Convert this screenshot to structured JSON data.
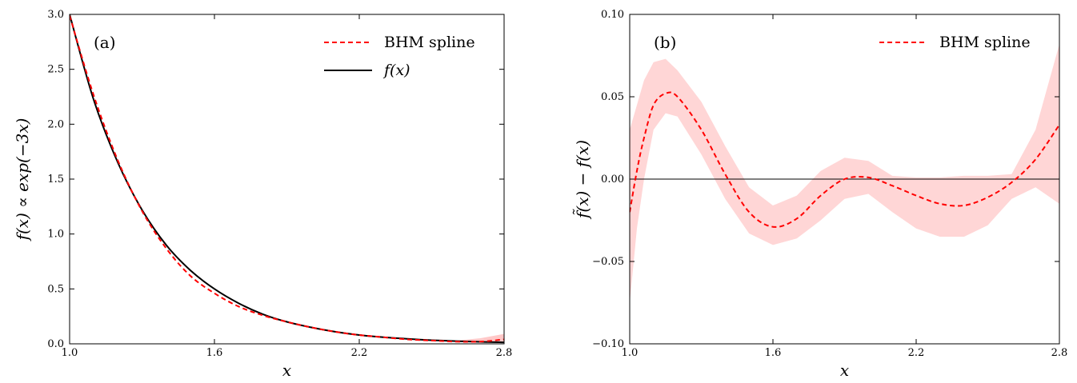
{
  "chart_data": [
    {
      "type": "line",
      "panel_label": "(a)",
      "xlabel": "x",
      "ylabel": "f(x)  ∝  exp(−3x)",
      "xlim": [
        1.0,
        2.8
      ],
      "ylim": [
        0.0,
        3.0
      ],
      "xticks": [
        "1.0",
        "1.6",
        "2.2",
        "2.8"
      ],
      "yticks": [
        "0.0",
        "0.5",
        "1.0",
        "1.5",
        "2.0",
        "2.5",
        "3.0"
      ],
      "grid": false,
      "legend_position": "top-right",
      "series": [
        {
          "name": "BHM spline",
          "style": "dashed",
          "color": "#ff0000",
          "x": [
            1.0,
            1.1,
            1.2,
            1.3,
            1.4,
            1.5,
            1.6,
            1.7,
            1.8,
            1.9,
            2.0,
            2.1,
            2.2,
            2.3,
            2.4,
            2.5,
            2.6,
            2.7,
            2.8
          ],
          "y": [
            2.99,
            2.26,
            1.67,
            1.21,
            0.87,
            0.62,
            0.46,
            0.34,
            0.26,
            0.2,
            0.15,
            0.11,
            0.08,
            0.06,
            0.04,
            0.03,
            0.02,
            0.02,
            0.04
          ],
          "band": {
            "color": "#ffc8c8",
            "x": [
              2.5,
              2.6,
              2.7,
              2.8
            ],
            "lower": [
              0.03,
              0.02,
              0.01,
              0.01
            ],
            "upper": [
              0.03,
              0.03,
              0.05,
              0.09
            ]
          }
        },
        {
          "name": "f(x)",
          "style": "solid",
          "color": "#000000",
          "x": [
            1.0,
            1.1,
            1.2,
            1.3,
            1.4,
            1.5,
            1.6,
            1.7,
            1.8,
            1.9,
            2.0,
            2.1,
            2.2,
            2.3,
            2.4,
            2.5,
            2.6,
            2.7,
            2.8
          ],
          "y": [
            3.0,
            2.22,
            1.65,
            1.22,
            0.9,
            0.67,
            0.5,
            0.37,
            0.27,
            0.2,
            0.15,
            0.11,
            0.08,
            0.06,
            0.045,
            0.033,
            0.025,
            0.018,
            0.014
          ]
        }
      ]
    },
    {
      "type": "line",
      "panel_label": "(b)",
      "xlabel": "x",
      "ylabel": "f̃(x) − f(x)",
      "xlim": [
        1.0,
        2.8
      ],
      "ylim": [
        -0.1,
        0.1
      ],
      "xticks": [
        "1.0",
        "1.6",
        "2.2",
        "2.8"
      ],
      "yticks": [
        "−0.10",
        "−0.05",
        "0.00",
        "0.05",
        "0.10"
      ],
      "grid": false,
      "legend_position": "top-right",
      "reference_line_y": 0.0,
      "series": [
        {
          "name": "BHM spline",
          "style": "dashed",
          "color": "#ff0000",
          "x": [
            1.0,
            1.03,
            1.06,
            1.1,
            1.15,
            1.2,
            1.3,
            1.4,
            1.5,
            1.6,
            1.7,
            1.8,
            1.9,
            2.0,
            2.1,
            2.2,
            2.3,
            2.4,
            2.5,
            2.6,
            2.7,
            2.8
          ],
          "y": [
            -0.02,
            0.005,
            0.025,
            0.045,
            0.052,
            0.05,
            0.03,
            0.003,
            -0.02,
            -0.029,
            -0.024,
            -0.01,
            0.0,
            0.001,
            -0.004,
            -0.01,
            -0.015,
            -0.016,
            -0.011,
            -0.002,
            0.012,
            0.033
          ],
          "band": {
            "color": "#ffd6d6",
            "x": [
              1.0,
              1.03,
              1.06,
              1.1,
              1.15,
              1.2,
              1.3,
              1.4,
              1.5,
              1.6,
              1.7,
              1.8,
              1.9,
              2.0,
              2.1,
              2.2,
              2.3,
              2.4,
              2.5,
              2.6,
              2.7,
              2.8
            ],
            "lower": [
              -0.075,
              -0.03,
              0.0,
              0.03,
              0.04,
              0.038,
              0.015,
              -0.012,
              -0.033,
              -0.04,
              -0.036,
              -0.025,
              -0.012,
              -0.009,
              -0.02,
              -0.03,
              -0.035,
              -0.035,
              -0.028,
              -0.012,
              -0.005,
              -0.015
            ],
            "upper": [
              0.03,
              0.045,
              0.06,
              0.071,
              0.073,
              0.066,
              0.047,
              0.02,
              -0.005,
              -0.016,
              -0.01,
              0.005,
              0.013,
              0.011,
              0.002,
              0.001,
              0.001,
              0.002,
              0.002,
              0.003,
              0.03,
              0.082
            ]
          }
        }
      ]
    }
  ]
}
